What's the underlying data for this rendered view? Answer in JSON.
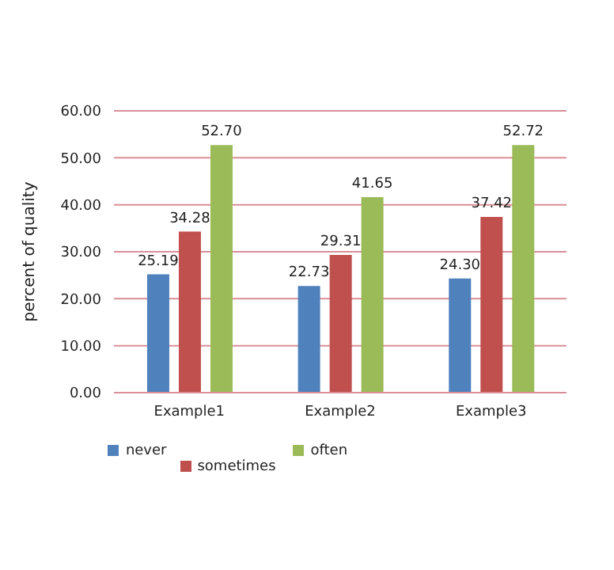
{
  "chart_data": {
    "type": "bar",
    "ylabel": "percent of quality",
    "categories": [
      "Example1",
      "Example2",
      "Example3"
    ],
    "series": [
      {
        "name": "never",
        "color": "#4f81bd",
        "values": [
          25.19,
          22.73,
          24.3
        ],
        "value_labels": [
          "25.19",
          "22.73",
          "24.30"
        ]
      },
      {
        "name": "sometimes",
        "color": "#c0504d",
        "values": [
          34.28,
          29.31,
          37.42
        ],
        "value_labels": [
          "34.28",
          "29.31",
          "37.42"
        ]
      },
      {
        "name": "often",
        "color": "#9bbb59",
        "values": [
          52.7,
          41.65,
          52.72
        ],
        "value_labels": [
          "52.70",
          "41.65",
          "52.72"
        ]
      }
    ],
    "ylim": [
      0,
      60
    ],
    "yticks": [
      {
        "value": 0,
        "label": "0.00"
      },
      {
        "value": 10,
        "label": "10.00"
      },
      {
        "value": 20,
        "label": "20.00"
      },
      {
        "value": 30,
        "label": "30.00"
      },
      {
        "value": 40,
        "label": "40.00"
      },
      {
        "value": 50,
        "label": "50.00"
      },
      {
        "value": 60,
        "label": "60.00"
      }
    ],
    "grid": "y",
    "legend": "bottom"
  }
}
